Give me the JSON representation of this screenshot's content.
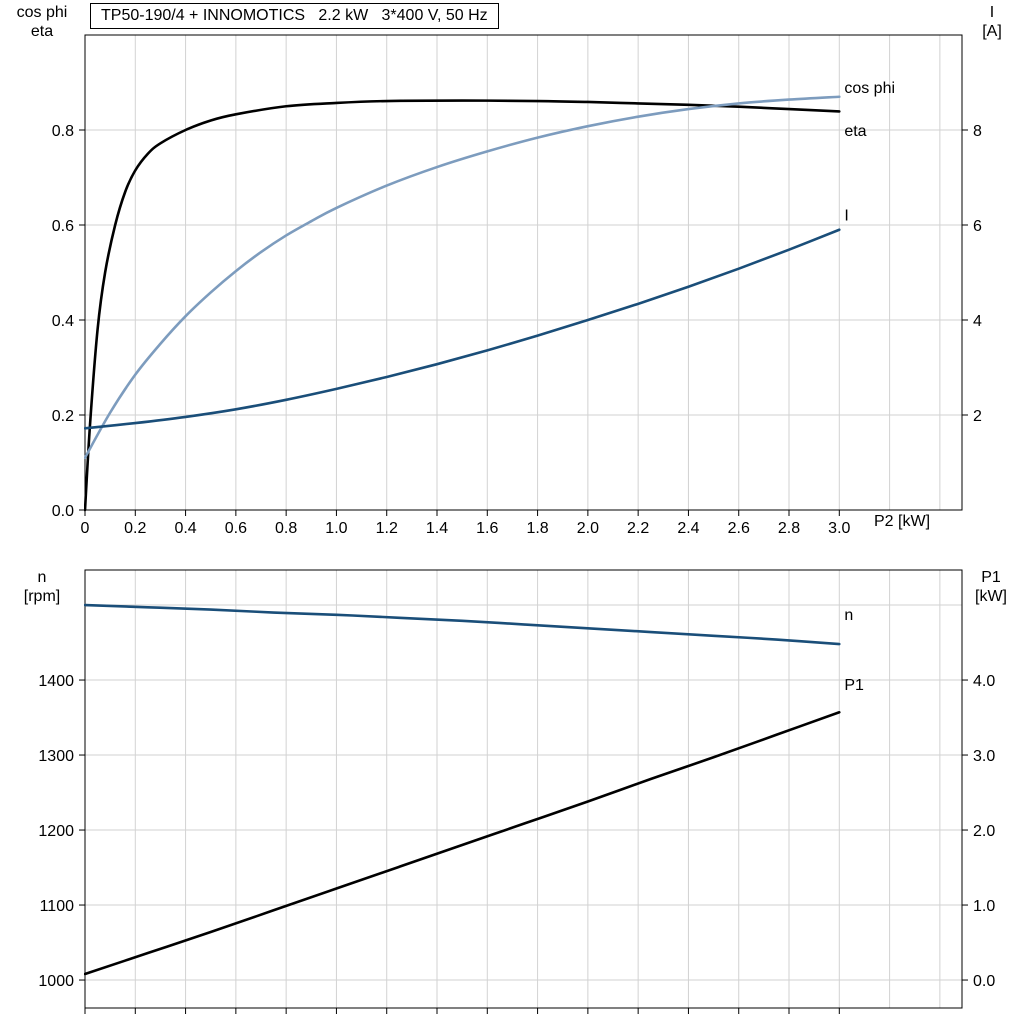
{
  "title": {
    "text": "TP50-190/4 + INNOMOTICS   2.2 kW   3*400 V, 50 Hz"
  },
  "colors": {
    "black": "#000000",
    "light_blue": "#7d9cbe",
    "dark_blue": "#1a4e79",
    "grid": "#d2d2d2",
    "frame": "#000000"
  },
  "chart_data": [
    {
      "type": "line",
      "name": "motor-efficiency-chart",
      "x_axis": {
        "label": "P2 [kW]",
        "min": 0,
        "max": 3.488,
        "tick_values": [
          0,
          0.2,
          0.4,
          0.6,
          0.8,
          1.0,
          1.2,
          1.4,
          1.6,
          1.8,
          2.0,
          2.2,
          2.4,
          2.6,
          2.8,
          3.0
        ],
        "tick_labels": [
          "0",
          "0.2",
          "0.4",
          "0.6",
          "0.8",
          "1.0",
          "1.2",
          "1.4",
          "1.6",
          "1.8",
          "2.0",
          "2.2",
          "2.4",
          "2.6",
          "2.8",
          "3.0"
        ],
        "grid_values": [
          0.2,
          0.4,
          0.6,
          0.8,
          1.0,
          1.2,
          1.4,
          1.6,
          1.8,
          2.0,
          2.2,
          2.4,
          2.6,
          2.8,
          3.0,
          3.2,
          3.4
        ]
      },
      "left_axis": {
        "title": [
          "cos phi",
          "eta"
        ],
        "min": 0,
        "max": 1.0,
        "tick_values": [
          0,
          0.2,
          0.4,
          0.6,
          0.8
        ],
        "tick_labels": [
          "0.0",
          "0.2",
          "0.4",
          "0.6",
          "0.8"
        ],
        "grid_values": [
          0.2,
          0.4,
          0.6,
          0.8
        ]
      },
      "right_axis": {
        "title": [
          "I",
          "[A]"
        ],
        "min": 0,
        "max": 10,
        "tick_values": [
          2,
          4,
          6,
          8
        ],
        "tick_labels": [
          "2",
          "4",
          "6",
          "8"
        ]
      },
      "series": [
        {
          "name": "eta",
          "axis": "left",
          "color_key": "black",
          "label": "eta",
          "label_at": [
            3.02,
            0.787
          ],
          "points": [
            [
              0,
              0
            ],
            [
              0.02,
              0.18
            ],
            [
              0.05,
              0.38
            ],
            [
              0.08,
              0.5
            ],
            [
              0.12,
              0.6
            ],
            [
              0.16,
              0.67
            ],
            [
              0.2,
              0.715
            ],
            [
              0.25,
              0.75
            ],
            [
              0.3,
              0.772
            ],
            [
              0.4,
              0.8
            ],
            [
              0.5,
              0.82
            ],
            [
              0.6,
              0.833
            ],
            [
              0.8,
              0.85
            ],
            [
              1.0,
              0.857
            ],
            [
              1.2,
              0.861
            ],
            [
              1.5,
              0.862
            ],
            [
              1.8,
              0.861
            ],
            [
              2.0,
              0.859
            ],
            [
              2.2,
              0.856
            ],
            [
              2.4,
              0.853
            ],
            [
              2.6,
              0.849
            ],
            [
              2.8,
              0.844
            ],
            [
              3.0,
              0.839
            ]
          ]
        },
        {
          "name": "cos-phi",
          "axis": "left",
          "color_key": "light_blue",
          "label": "cos phi",
          "label_at": [
            3.02,
            0.878
          ],
          "points": [
            [
              0,
              0.11
            ],
            [
              0.1,
              0.205
            ],
            [
              0.2,
              0.285
            ],
            [
              0.3,
              0.35
            ],
            [
              0.4,
              0.408
            ],
            [
              0.5,
              0.458
            ],
            [
              0.6,
              0.503
            ],
            [
              0.7,
              0.543
            ],
            [
              0.8,
              0.578
            ],
            [
              0.9,
              0.608
            ],
            [
              1.0,
              0.636
            ],
            [
              1.2,
              0.683
            ],
            [
              1.4,
              0.722
            ],
            [
              1.6,
              0.755
            ],
            [
              1.8,
              0.784
            ],
            [
              2.0,
              0.808
            ],
            [
              2.2,
              0.828
            ],
            [
              2.4,
              0.844
            ],
            [
              2.6,
              0.856
            ],
            [
              2.8,
              0.864
            ],
            [
              3.0,
              0.87
            ]
          ]
        },
        {
          "name": "I",
          "axis": "right",
          "color_key": "dark_blue",
          "label": "I",
          "label_at": [
            3.02,
            6.1
          ],
          "points": [
            [
              0,
              1.72
            ],
            [
              0.2,
              1.83
            ],
            [
              0.4,
              1.96
            ],
            [
              0.6,
              2.12
            ],
            [
              0.8,
              2.32
            ],
            [
              1.0,
              2.55
            ],
            [
              1.2,
              2.8
            ],
            [
              1.4,
              3.07
            ],
            [
              1.6,
              3.36
            ],
            [
              1.8,
              3.67
            ],
            [
              2.0,
              4.0
            ],
            [
              2.2,
              4.34
            ],
            [
              2.4,
              4.7
            ],
            [
              2.6,
              5.08
            ],
            [
              2.8,
              5.48
            ],
            [
              3.0,
              5.9
            ]
          ]
        }
      ]
    },
    {
      "type": "line",
      "name": "speed-power-chart",
      "x_axis": {
        "label": "",
        "min": 0,
        "max": 3.488,
        "tick_values": [
          0,
          0.2,
          0.4,
          0.6,
          0.8,
          1.0,
          1.2,
          1.4,
          1.6,
          1.8,
          2.0,
          2.2,
          2.4,
          2.6,
          2.8,
          3.0
        ],
        "tick_labels": [
          "",
          "",
          "",
          "",
          "",
          "",
          "",
          "",
          "",
          "",
          "",
          "",
          "",
          "",
          "",
          ""
        ],
        "grid_values": [
          0.2,
          0.4,
          0.6,
          0.8,
          1.0,
          1.2,
          1.4,
          1.6,
          1.8,
          2.0,
          2.2,
          2.4,
          2.6,
          2.8,
          3.0,
          3.2,
          3.4
        ]
      },
      "left_axis": {
        "title": [
          "n",
          "[rpm]"
        ],
        "min": 962.7,
        "max": 1546.7,
        "tick_values": [
          1000,
          1100,
          1200,
          1300,
          1400
        ],
        "tick_labels": [
          "1000",
          "1100",
          "1200",
          "1300",
          "1400"
        ],
        "grid_values": [
          1000,
          1100,
          1200,
          1300,
          1400,
          1500
        ]
      },
      "right_axis": {
        "title": [
          "P1",
          "[kW]"
        ],
        "min": -0.373,
        "max": 5.467,
        "tick_values": [
          0,
          1,
          2,
          3,
          4
        ],
        "tick_labels": [
          "0.0",
          "1.0",
          "2.0",
          "3.0",
          "4.0"
        ]
      },
      "series": [
        {
          "name": "n",
          "axis": "left",
          "color_key": "dark_blue",
          "label": "n",
          "label_at": [
            3.02,
            1480
          ],
          "points": [
            [
              0,
              1500
            ],
            [
              0.25,
              1497
            ],
            [
              0.5,
              1494
            ],
            [
              0.75,
              1490
            ],
            [
              1.0,
              1487
            ],
            [
              1.25,
              1483
            ],
            [
              1.5,
              1479
            ],
            [
              1.75,
              1474
            ],
            [
              2.0,
              1469
            ],
            [
              2.25,
              1464
            ],
            [
              2.5,
              1459
            ],
            [
              2.75,
              1454
            ],
            [
              3.0,
              1448
            ]
          ]
        },
        {
          "name": "P1",
          "axis": "right",
          "color_key": "black",
          "label": "P1",
          "label_at": [
            3.02,
            3.87
          ],
          "points": [
            [
              0,
              0.08
            ],
            [
              0.25,
              0.36
            ],
            [
              0.5,
              0.64
            ],
            [
              0.75,
              0.93
            ],
            [
              1.0,
              1.22
            ],
            [
              1.25,
              1.51
            ],
            [
              1.5,
              1.8
            ],
            [
              1.75,
              2.09
            ],
            [
              2.0,
              2.38
            ],
            [
              2.25,
              2.68
            ],
            [
              2.5,
              2.97
            ],
            [
              2.75,
              3.27
            ],
            [
              3.0,
              3.57
            ]
          ]
        }
      ]
    }
  ]
}
